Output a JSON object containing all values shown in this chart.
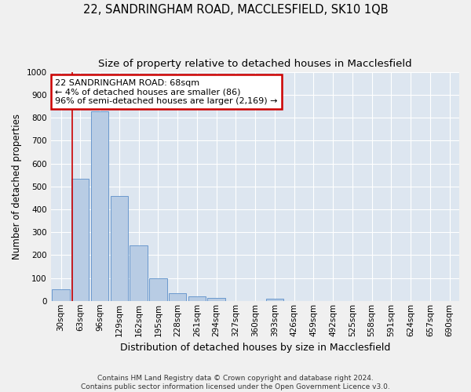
{
  "title": "22, SANDRINGHAM ROAD, MACCLESFIELD, SK10 1QB",
  "subtitle": "Size of property relative to detached houses in Macclesfield",
  "xlabel": "Distribution of detached houses by size in Macclesfield",
  "ylabel": "Number of detached properties",
  "footer_line1": "Contains HM Land Registry data © Crown copyright and database right 2024.",
  "footer_line2": "Contains public sector information licensed under the Open Government Licence v3.0.",
  "categories": [
    "30sqm",
    "63sqm",
    "96sqm",
    "129sqm",
    "162sqm",
    "195sqm",
    "228sqm",
    "261sqm",
    "294sqm",
    "327sqm",
    "360sqm",
    "393sqm",
    "426sqm",
    "459sqm",
    "492sqm",
    "525sqm",
    "558sqm",
    "591sqm",
    "624sqm",
    "657sqm",
    "690sqm"
  ],
  "values": [
    50,
    535,
    830,
    460,
    242,
    97,
    35,
    20,
    12,
    0,
    0,
    8,
    0,
    0,
    0,
    0,
    0,
    0,
    0,
    0,
    0
  ],
  "bar_color": "#b8cce4",
  "bar_edge_color": "#5b8fc9",
  "property_line_bin_index": 0.575,
  "annotation_text_line1": "22 SANDRINGHAM ROAD: 68sqm",
  "annotation_text_line2": "← 4% of detached houses are smaller (86)",
  "annotation_text_line3": "96% of semi-detached houses are larger (2,169) →",
  "annotation_box_color": "#ffffff",
  "annotation_box_edge_color": "#cc0000",
  "red_line_color": "#cc0000",
  "ylim": [
    0,
    1000
  ],
  "background_color": "#dde6f0",
  "grid_color": "#ffffff",
  "title_fontsize": 10.5,
  "subtitle_fontsize": 9.5,
  "xlabel_fontsize": 9,
  "ylabel_fontsize": 8.5,
  "tick_fontsize": 7.5
}
